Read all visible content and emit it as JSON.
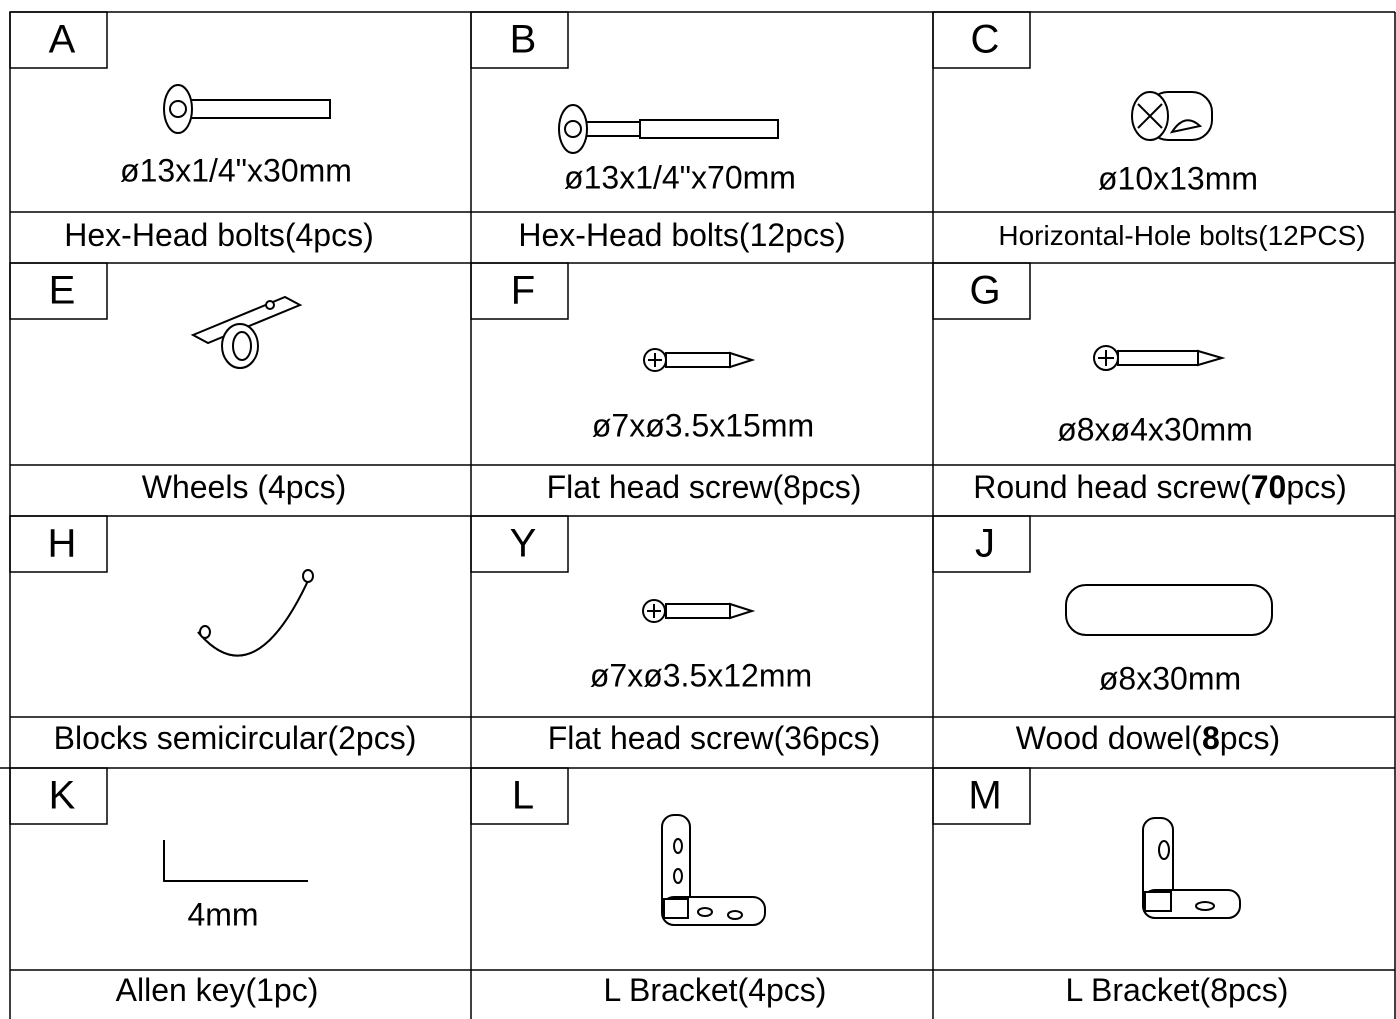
{
  "parts": [
    {
      "letter": "A",
      "size": "ø13x1/4\"x30mm",
      "label": [
        "Hex-Head bolts(4pcs)"
      ]
    },
    {
      "letter": "B",
      "size": "ø13x1/4\"x70mm",
      "label": [
        "Hex-Head bolts(12pcs)"
      ]
    },
    {
      "letter": "C",
      "size": "ø10x13mm",
      "label": [
        "Horizontal-Hole bolts(12PCS)"
      ]
    },
    {
      "letter": "E",
      "label": [
        "Wheels (4pcs)"
      ]
    },
    {
      "letter": "F",
      "size": "ø7xø3.5x15mm",
      "label": [
        "Flat head screw(8pcs)"
      ]
    },
    {
      "letter": "G",
      "size": "ø8xø4x30mm",
      "label": [
        "Round head screw(",
        "70",
        "pcs)"
      ]
    },
    {
      "letter": "H",
      "label": [
        "Blocks semicircular(2pcs)"
      ]
    },
    {
      "letter": "Y",
      "size": "ø7xø3.5x12mm",
      "label": [
        "Flat head screw(36pcs)"
      ]
    },
    {
      "letter": "J",
      "size": "ø8x30mm",
      "label": [
        "Wood dowel(",
        "8",
        "pcs)"
      ]
    },
    {
      "letter": "K",
      "size": "4mm",
      "label": [
        "Allen key(1pc)"
      ]
    },
    {
      "letter": "L",
      "label": [
        "L Bracket(4pcs)"
      ]
    },
    {
      "letter": "M",
      "label": [
        "L Bracket(8pcs)"
      ]
    }
  ]
}
